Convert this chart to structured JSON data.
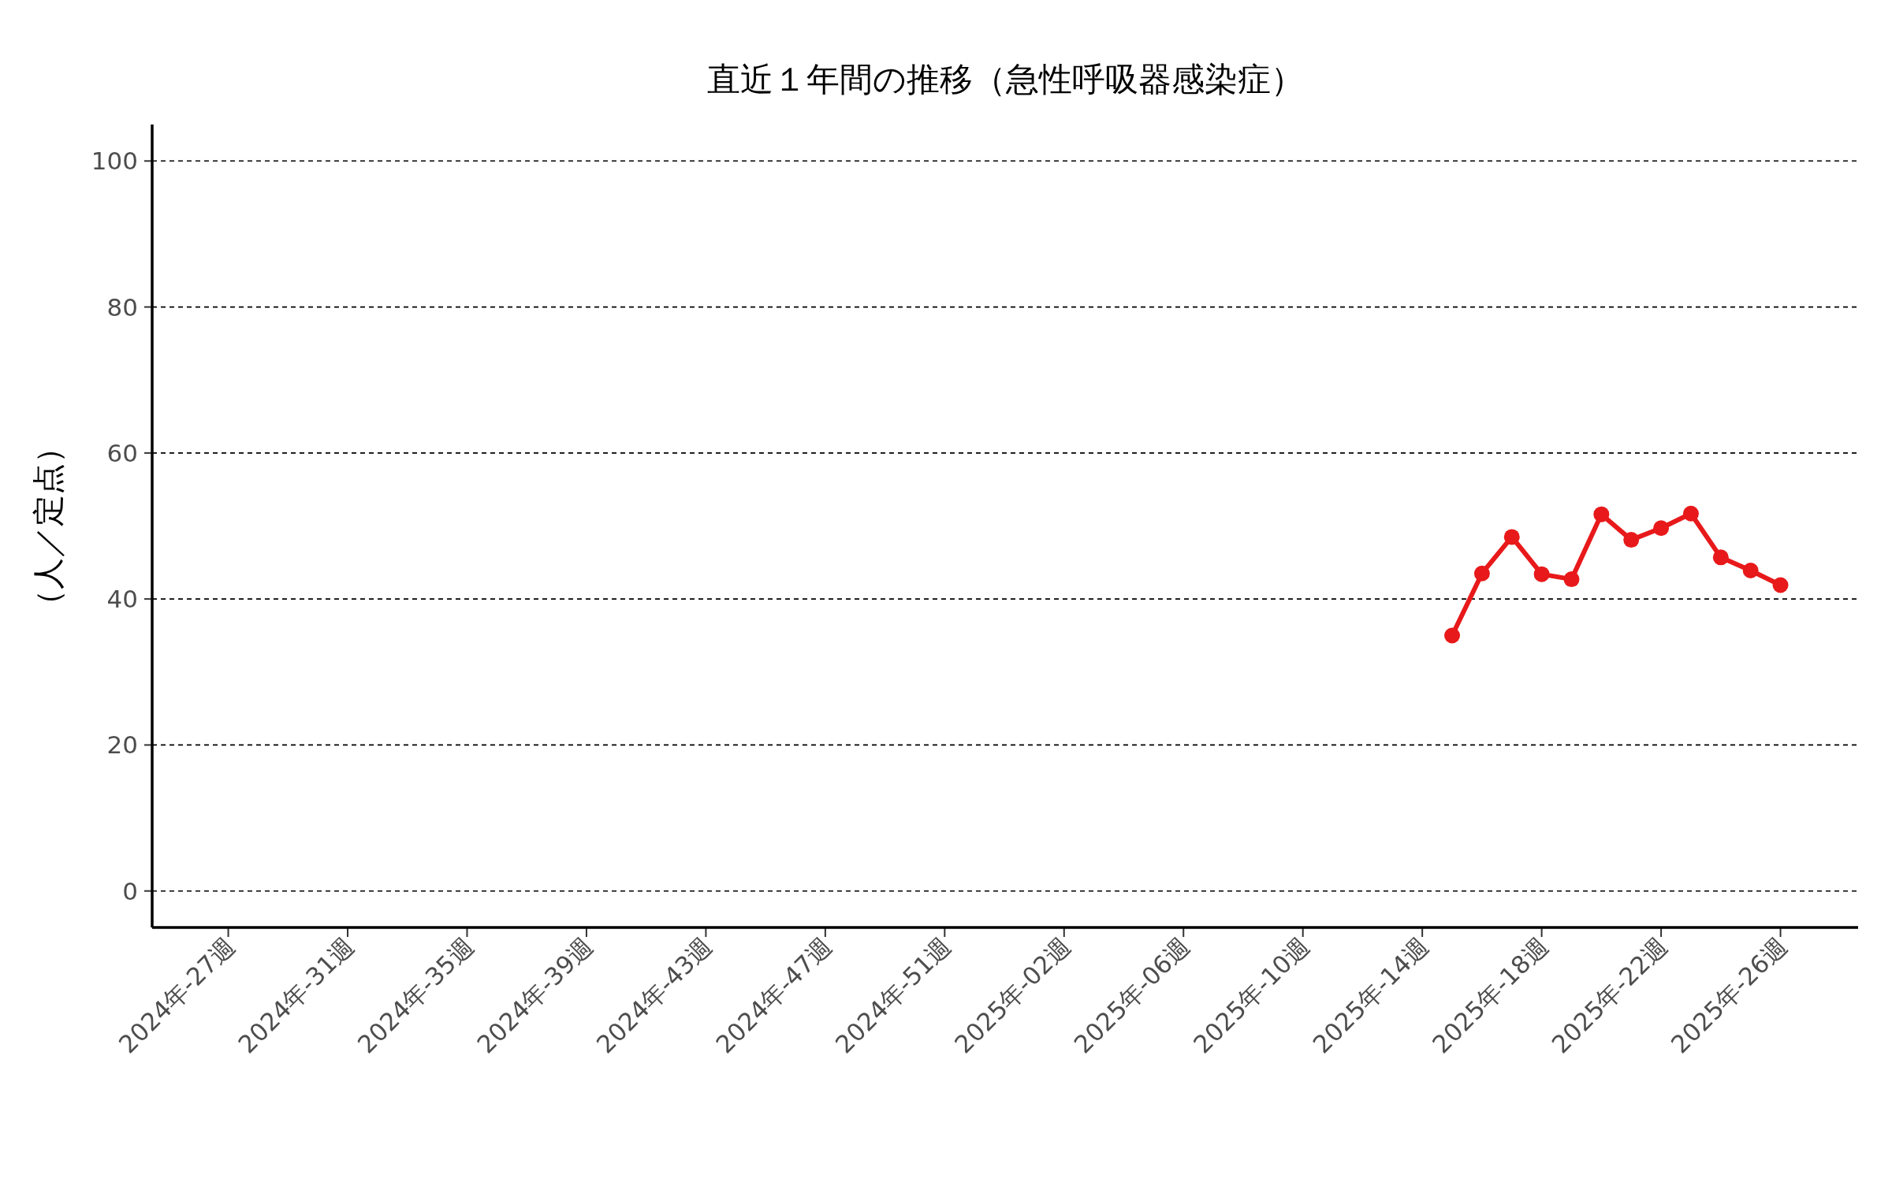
{
  "chart_data": {
    "type": "line",
    "title": "直近１年間の推移（急性呼吸器感染症）",
    "ylabel": "（人／定点）",
    "categories": [
      "2024年-27週",
      null,
      null,
      null,
      "2024年-31週",
      null,
      null,
      null,
      "2024年-35週",
      null,
      null,
      null,
      "2024年-39週",
      null,
      null,
      null,
      "2024年-43週",
      null,
      null,
      null,
      "2024年-47週",
      null,
      null,
      null,
      "2024年-51週",
      null,
      null,
      null,
      "2025年-02週",
      null,
      null,
      null,
      "2025年-06週",
      null,
      null,
      null,
      "2025年-10週",
      null,
      null,
      null,
      "2025年-14週",
      null,
      null,
      null,
      "2025年-18週",
      null,
      null,
      null,
      "2025年-22週",
      null,
      null,
      null,
      "2025年-26週"
    ],
    "series": [
      {
        "color": "#e8191a",
        "values": [
          null,
          null,
          null,
          null,
          null,
          null,
          null,
          null,
          null,
          null,
          null,
          null,
          null,
          null,
          null,
          null,
          null,
          null,
          null,
          null,
          null,
          null,
          null,
          null,
          null,
          null,
          null,
          null,
          null,
          null,
          null,
          null,
          null,
          null,
          null,
          null,
          null,
          null,
          null,
          null,
          null,
          35.0,
          43.5,
          48.5,
          43.4,
          42.7,
          51.6,
          48.1,
          49.7,
          51.7,
          45.7,
          43.9,
          41.9
        ]
      }
    ],
    "ylim": [
      -5,
      105
    ],
    "yticks": [
      0,
      20,
      40,
      60,
      80,
      100
    ],
    "grid": "y",
    "marker": "circle",
    "line_style": "solid"
  }
}
